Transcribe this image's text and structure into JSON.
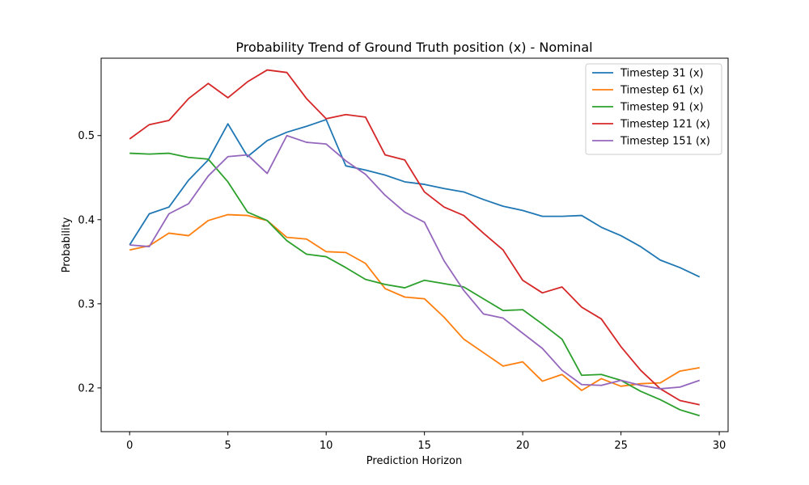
{
  "chart_data": {
    "type": "line",
    "title": "Probability Trend of Ground Truth position (x) - Nominal",
    "xlabel": "Prediction Horizon",
    "ylabel": "Probability",
    "xlim": [
      -1.45,
      30.45
    ],
    "ylim": [
      0.148,
      0.592
    ],
    "xticks": [
      0,
      5,
      10,
      15,
      20,
      25,
      30
    ],
    "yticks": [
      0.2,
      0.3,
      0.4,
      0.5
    ],
    "grid": false,
    "legend_position": "top-right",
    "x": [
      0,
      1,
      2,
      3,
      4,
      5,
      6,
      7,
      8,
      9,
      10,
      11,
      12,
      13,
      14,
      15,
      16,
      17,
      18,
      19,
      20,
      21,
      22,
      23,
      24,
      25,
      26,
      27,
      28,
      29
    ],
    "series": [
      {
        "name": "Timestep 31 (x)",
        "color": "#1f77b4",
        "values": [
          0.37,
          0.407,
          0.415,
          0.447,
          0.471,
          0.514,
          0.475,
          0.494,
          0.504,
          0.511,
          0.519,
          0.464,
          0.459,
          0.453,
          0.445,
          0.442,
          0.437,
          0.433,
          0.424,
          0.416,
          0.411,
          0.404,
          0.404,
          0.405,
          0.391,
          0.381,
          0.368,
          0.352,
          0.343,
          0.332
        ]
      },
      {
        "name": "Timestep 61 (x)",
        "color": "#ff7f0e",
        "values": [
          0.364,
          0.369,
          0.384,
          0.381,
          0.399,
          0.406,
          0.405,
          0.399,
          0.379,
          0.377,
          0.362,
          0.361,
          0.348,
          0.318,
          0.308,
          0.306,
          0.284,
          0.258,
          0.242,
          0.226,
          0.231,
          0.208,
          0.216,
          0.197,
          0.211,
          0.202,
          0.205,
          0.206,
          0.22,
          0.224
        ]
      },
      {
        "name": "Timestep 91 (x)",
        "color": "#2ca02c",
        "values": [
          0.479,
          0.478,
          0.479,
          0.474,
          0.472,
          0.445,
          0.409,
          0.399,
          0.375,
          0.359,
          0.356,
          0.343,
          0.329,
          0.323,
          0.319,
          0.328,
          0.324,
          0.32,
          0.306,
          0.292,
          0.293,
          0.276,
          0.258,
          0.215,
          0.216,
          0.209,
          0.196,
          0.186,
          0.174,
          0.167
        ]
      },
      {
        "name": "Timestep 121 (x)",
        "color": "#d62728",
        "values": [
          0.496,
          0.513,
          0.518,
          0.544,
          0.562,
          0.545,
          0.564,
          0.578,
          0.575,
          0.544,
          0.52,
          0.525,
          0.522,
          0.477,
          0.471,
          0.433,
          0.415,
          0.405,
          0.384,
          0.364,
          0.328,
          0.313,
          0.32,
          0.296,
          0.282,
          0.249,
          0.221,
          0.199,
          0.185,
          0.18
        ]
      },
      {
        "name": "Timestep 151 (x)",
        "color": "#9467bd",
        "values": [
          0.37,
          0.368,
          0.407,
          0.419,
          0.452,
          0.475,
          0.477,
          0.455,
          0.5,
          0.492,
          0.49,
          0.47,
          0.454,
          0.429,
          0.409,
          0.397,
          0.351,
          0.316,
          0.288,
          0.283,
          0.265,
          0.247,
          0.221,
          0.204,
          0.203,
          0.209,
          0.203,
          0.199,
          0.201,
          0.209
        ]
      }
    ]
  }
}
